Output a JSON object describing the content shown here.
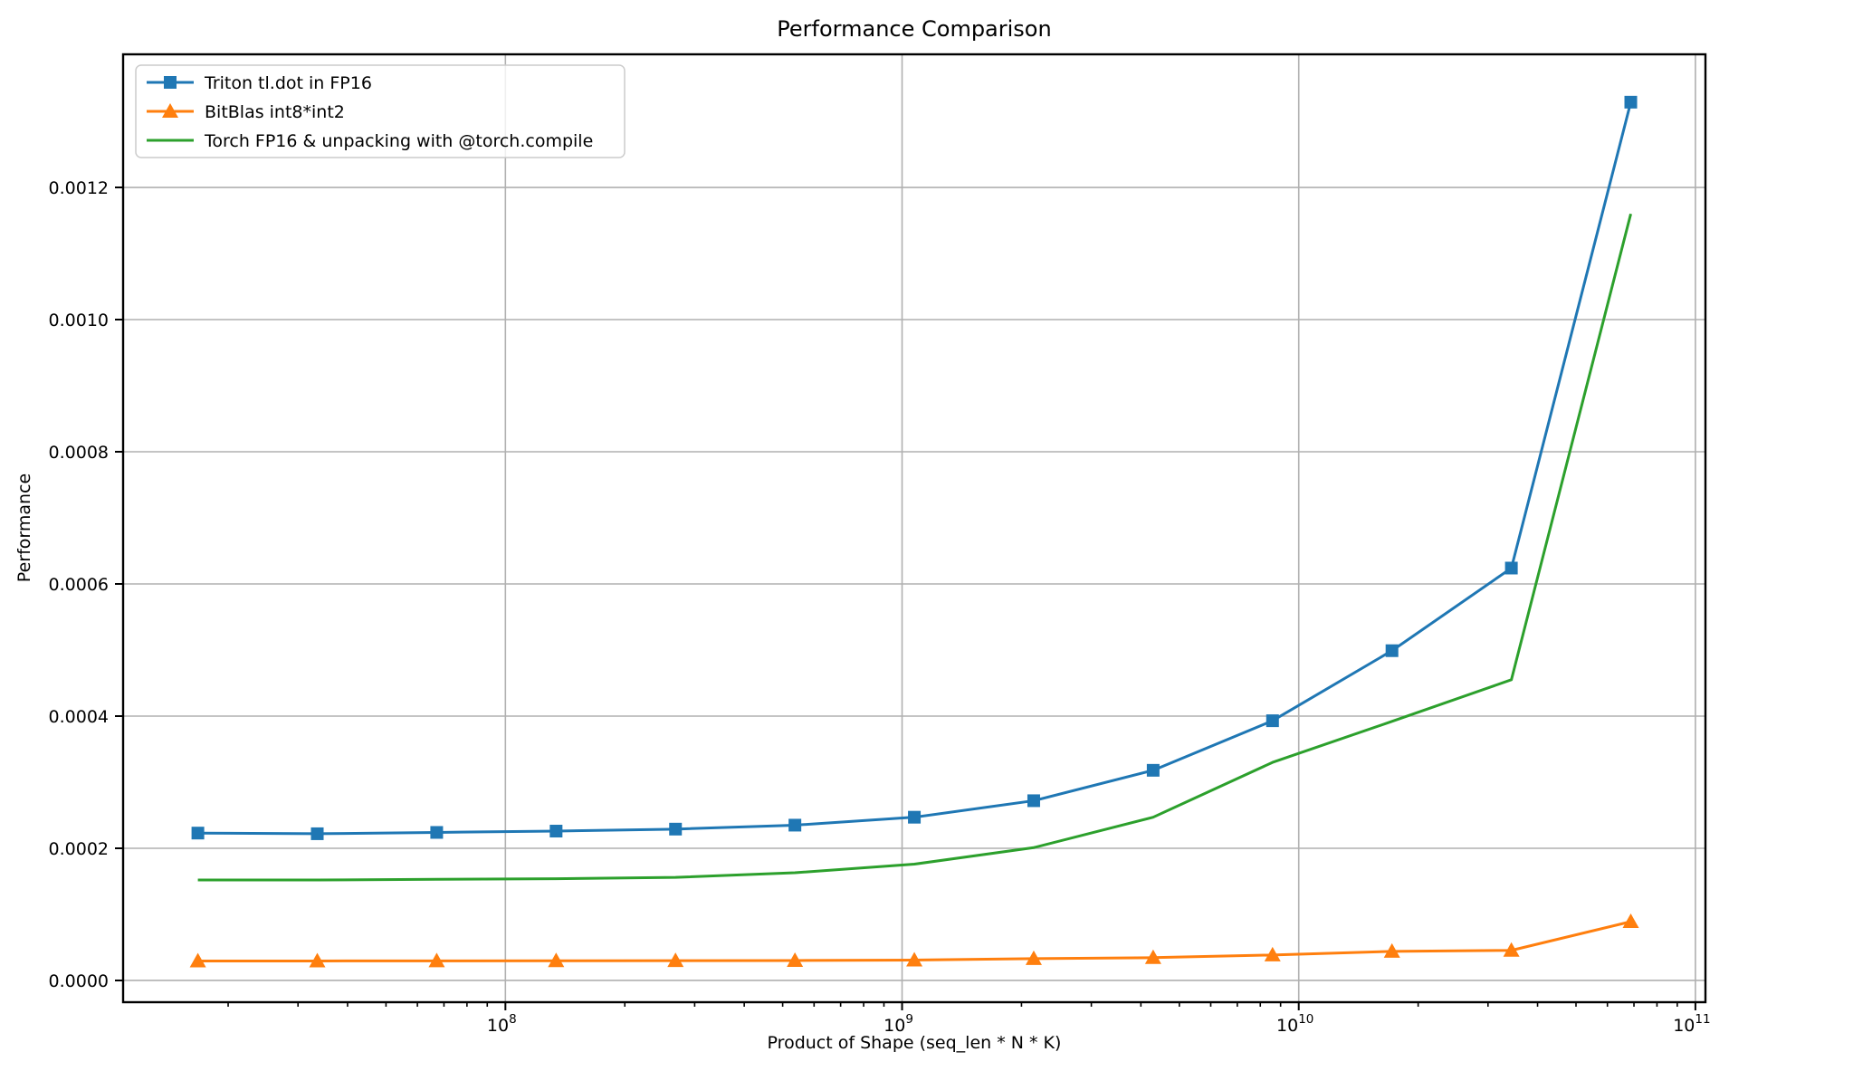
{
  "figure": {
    "title": "Performance Comparison",
    "background": "#ffffff"
  },
  "chart_data": {
    "type": "line",
    "title": "Performance Comparison",
    "xlabel": "Product of Shape (seq_len * N * K)",
    "ylabel": "Performance",
    "x_scale": "log",
    "y_scale": "linear",
    "grid": true,
    "grid_color": "#b0b0b0",
    "axis_color": "#000000",
    "legend_position": "upper left",
    "xlim": [
      10870000,
      106000000000
    ],
    "ylim": [
      -3.29e-05,
      0.0014014
    ],
    "x_major_ticks": [
      {
        "base": "10",
        "exponent": "8",
        "value": 100000000
      },
      {
        "base": "10",
        "exponent": "9",
        "value": 1000000000
      },
      {
        "base": "10",
        "exponent": "10",
        "value": 10000000000
      },
      {
        "base": "10",
        "exponent": "11",
        "value": 100000000000
      }
    ],
    "y_ticks": [
      {
        "label": "0.0000",
        "value": 0.0
      },
      {
        "label": "0.0002",
        "value": 0.0002
      },
      {
        "label": "0.0004",
        "value": 0.0004
      },
      {
        "label": "0.0006",
        "value": 0.0006
      },
      {
        "label": "0.0008",
        "value": 0.0008
      },
      {
        "label": "0.0010",
        "value": 0.001
      },
      {
        "label": "0.0012",
        "value": 0.0012
      }
    ],
    "x": [
      16777216,
      33554432,
      67108864,
      134217728,
      268435456,
      536870912,
      1073741824,
      2147483648,
      4294967296,
      8589934592,
      17179869184,
      34359738368,
      68719476736
    ],
    "series": [
      {
        "name": "Triton tl.dot in FP16",
        "color": "#1f77b4",
        "marker": "square",
        "values": [
          0.000223,
          0.000222,
          0.000224,
          0.000226,
          0.000229,
          0.000235,
          0.000247,
          0.000272,
          0.000318,
          0.000393,
          0.000499,
          0.000624,
          0.001329
        ]
      },
      {
        "name": "BitBlas int8*int2",
        "color": "#ff7f0e",
        "marker": "triangle",
        "values": [
          2.95e-05,
          2.95e-05,
          2.96e-05,
          2.97e-05,
          2.99e-05,
          3.02e-05,
          3.08e-05,
          3.3e-05,
          3.45e-05,
          3.85e-05,
          4.4e-05,
          4.55e-05,
          8.9e-05
        ]
      },
      {
        "name": "Torch FP16 & unpacking with @torch.compile",
        "color": "#2ca02c",
        "marker": "none",
        "values": [
          0.000152,
          0.000152,
          0.000153,
          0.000154,
          0.000156,
          0.000163,
          0.000176,
          0.000201,
          0.000247,
          0.00033,
          0.000392,
          0.000455,
          0.00116
        ]
      }
    ]
  }
}
